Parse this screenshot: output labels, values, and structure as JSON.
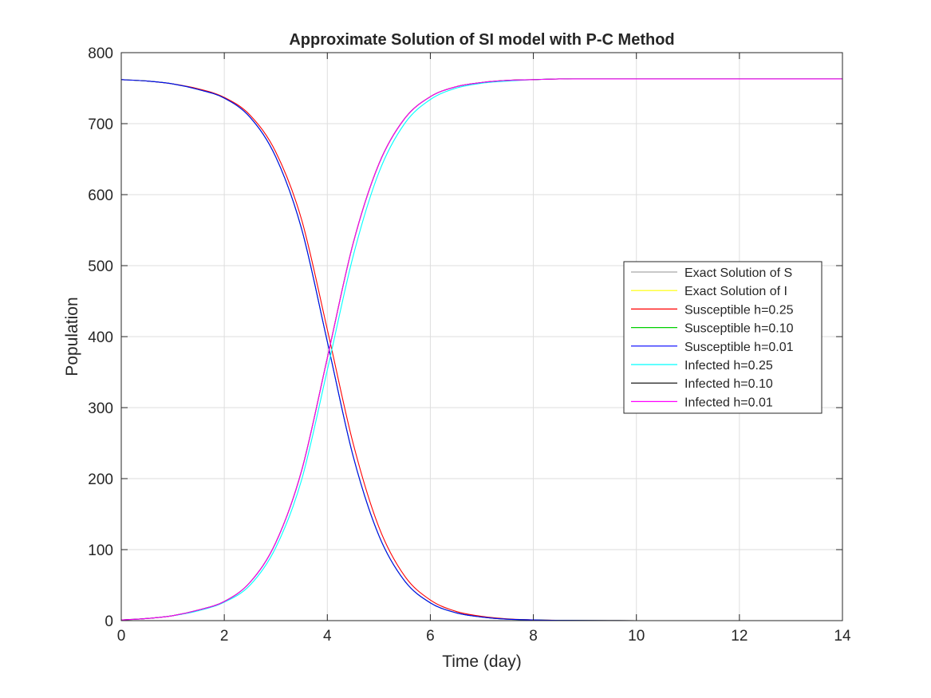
{
  "chart_data": {
    "type": "line",
    "title": "Approximate Solution of SI model with P-C Method",
    "xlabel": "Time (day)",
    "ylabel": "Population",
    "xlim": [
      0,
      14
    ],
    "ylim": [
      0,
      800
    ],
    "xticks": [
      0,
      2,
      4,
      6,
      8,
      10,
      12,
      14
    ],
    "yticks": [
      0,
      100,
      200,
      300,
      400,
      500,
      600,
      700,
      800
    ],
    "grid": true,
    "legend_position": "right",
    "x": [
      0,
      0.5,
      1,
      1.5,
      2,
      2.5,
      3,
      3.5,
      4,
      4.5,
      5,
      5.5,
      6,
      6.5,
      7,
      7.5,
      8,
      8.5,
      9,
      10,
      11,
      12,
      13,
      14
    ],
    "series": [
      {
        "name": "Exact Solution of S",
        "color": "#a8a8a8",
        "values": [
          762,
          760,
          756,
          748,
          736,
          709,
          653,
          552,
          393,
          232,
          120,
          56,
          25,
          11,
          5,
          2,
          1,
          0.4,
          0.2,
          0,
          0,
          0,
          0,
          0
        ]
      },
      {
        "name": "Exact Solution of I",
        "color": "#ffff00",
        "values": [
          1,
          3,
          7,
          15,
          27,
          54,
          110,
          211,
          370,
          531,
          643,
          707,
          738,
          752,
          758,
          761,
          762,
          763,
          763,
          763,
          763,
          763,
          763,
          763
        ]
      },
      {
        "name": "Susceptible h=0.25",
        "color": "#ff0000",
        "values": [
          762,
          760,
          756,
          749,
          737,
          712,
          660,
          565,
          410,
          250,
          132,
          63,
          29,
          13,
          6,
          2.5,
          1.1,
          0.5,
          0.2,
          0,
          0,
          0,
          0,
          0
        ]
      },
      {
        "name": "Susceptible h=0.10",
        "color": "#00d000",
        "values": [
          762,
          760,
          756,
          748,
          736,
          709,
          653,
          552,
          393,
          232,
          120,
          56,
          25,
          11,
          5,
          2,
          1,
          0.4,
          0.2,
          0,
          0,
          0,
          0,
          0
        ]
      },
      {
        "name": "Susceptible h=0.01",
        "color": "#0000ff",
        "values": [
          762,
          760,
          756,
          748,
          736,
          709,
          653,
          552,
          393,
          232,
          120,
          56,
          25,
          11,
          5,
          2,
          1,
          0.4,
          0.2,
          0,
          0,
          0,
          0,
          0
        ]
      },
      {
        "name": "Infected h=0.25",
        "color": "#00ffff",
        "values": [
          1,
          3,
          7,
          14,
          26,
          50,
          103,
          198,
          353,
          513,
          631,
          700,
          734,
          750,
          757,
          760,
          762,
          763,
          763,
          763,
          763,
          763,
          763,
          763
        ]
      },
      {
        "name": "Infected h=0.10",
        "color": "#000000",
        "values": [
          1,
          3,
          7,
          15,
          27,
          54,
          110,
          211,
          370,
          531,
          643,
          707,
          738,
          752,
          758,
          761,
          762,
          763,
          763,
          763,
          763,
          763,
          763,
          763
        ]
      },
      {
        "name": "Infected h=0.01",
        "color": "#ff00ff",
        "values": [
          1,
          3,
          7,
          15,
          27,
          54,
          110,
          211,
          370,
          531,
          643,
          707,
          738,
          752,
          758,
          761,
          762,
          763,
          763,
          763,
          763,
          763,
          763,
          763
        ]
      }
    ]
  }
}
